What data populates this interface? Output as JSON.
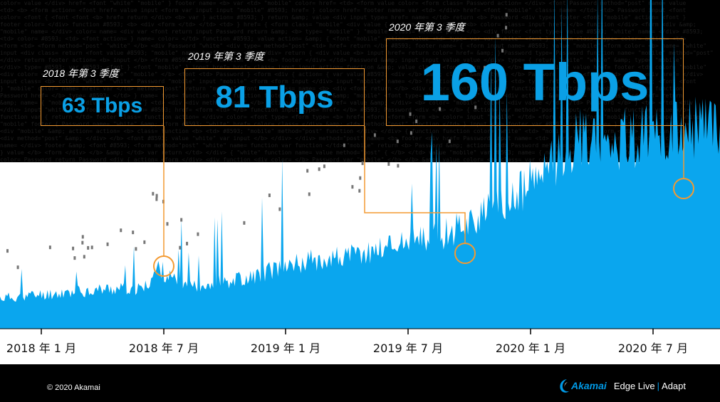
{
  "chart_data": {
    "type": "area",
    "title": "",
    "xlabel": "",
    "ylabel": "",
    "x_ticks": [
      "2018 年 1 月",
      "2018 年 7 月",
      "2019 年 1 月",
      "2019 年 7 月",
      "2020 年 1 月",
      "2020 年 7 月"
    ],
    "x_range": [
      "2017-10",
      "2020-10"
    ],
    "y_unit": "Tbps",
    "grid": false,
    "series_color": "#0aa6ee",
    "baseline_samples_tbps": [
      [
        0.0,
        10
      ],
      [
        0.05,
        11
      ],
      [
        0.1,
        12
      ],
      [
        0.15,
        13
      ],
      [
        0.2,
        13
      ],
      [
        0.22,
        20
      ],
      [
        0.25,
        14
      ],
      [
        0.3,
        15
      ],
      [
        0.35,
        17
      ],
      [
        0.4,
        21
      ],
      [
        0.45,
        23
      ],
      [
        0.5,
        24
      ],
      [
        0.55,
        28
      ],
      [
        0.6,
        29
      ],
      [
        0.65,
        35
      ],
      [
        0.7,
        40
      ],
      [
        0.75,
        50
      ],
      [
        0.8,
        62
      ],
      [
        0.85,
        62
      ],
      [
        0.9,
        63
      ],
      [
        0.95,
        64
      ],
      [
        1.0,
        68
      ]
    ],
    "peaks": [
      {
        "period": "2018 年第 3 季度",
        "value": 63,
        "label": "63 Tbps"
      },
      {
        "period": "2019 年第 3 季度",
        "value": 81,
        "label": "81 Tbps"
      },
      {
        "period": "2020 年第 3 季度",
        "value": 160,
        "label": "160 Tbps"
      }
    ]
  },
  "callouts": [
    {
      "period_label": "2018 年第 3 季度",
      "value_label": "63 Tbps"
    },
    {
      "period_label": "2019 年第 3 季度",
      "value_label": "81 Tbps"
    },
    {
      "period_label": "2020 年第 3 季度",
      "value_label": "160 Tbps"
    }
  ],
  "colors": {
    "accent_orange": "#f39a32",
    "akamai_blue": "#0099e5",
    "series_blue": "#0aa6ee"
  },
  "footer": {
    "copyright": "© 2020 Akamai",
    "brand": "Akamai",
    "edge_live": "Edge Live",
    "separator": "|",
    "adapt": "Adapt"
  }
}
